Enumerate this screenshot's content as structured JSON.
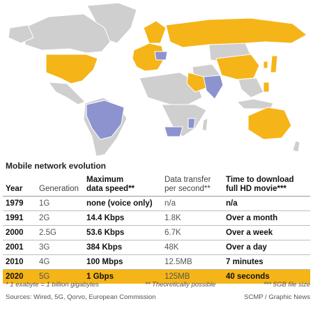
{
  "colors": {
    "highlight": "#f5b418",
    "map_gold": "#f5b418",
    "map_blue": "#8c93cf",
    "map_grey": "#cfcfcf"
  },
  "section_title": "Mobile network evolution",
  "table": {
    "headers": {
      "year": "Year",
      "generation": "Generation",
      "speed_line1": "Maximum",
      "speed_line2": "data speed**",
      "transfer_line1": "Data transfer",
      "transfer_line2": "per second**",
      "download_line1": "Time to download",
      "download_line2": "full HD movie***"
    },
    "rows": [
      {
        "year": "1979",
        "generation": "1G",
        "speed": "none (voice only)",
        "transfer": "n/a",
        "download": "n/a"
      },
      {
        "year": "1991",
        "generation": "2G",
        "speed": "14.4 Kbps",
        "transfer": "1.8K",
        "download": "Over a month"
      },
      {
        "year": "2000",
        "generation": "2.5G",
        "speed": "53.6 Kbps",
        "transfer": "6.7K",
        "download": "Over a week"
      },
      {
        "year": "2001",
        "generation": "3G",
        "speed": "384 Kbps",
        "transfer": "48K",
        "download": "Over a day"
      },
      {
        "year": "2010",
        "generation": "4G",
        "speed": "100 Mbps",
        "transfer": "12.5MB",
        "download": "7 minutes"
      },
      {
        "year": "2020",
        "generation": "5G",
        "speed": "1 Gbps",
        "transfer": "125MB",
        "download": "40 seconds",
        "highlight": true
      }
    ]
  },
  "footnotes": {
    "exabyte": "* 1 exabyte = 1 billion gigabytes",
    "theoretical": "** Theoretically possible",
    "filesize": "*** 5GB file size"
  },
  "sources": {
    "left": "Sources: Wired, 5G, Qorvo, European Commission",
    "right": "SCMP / Graphic News"
  }
}
